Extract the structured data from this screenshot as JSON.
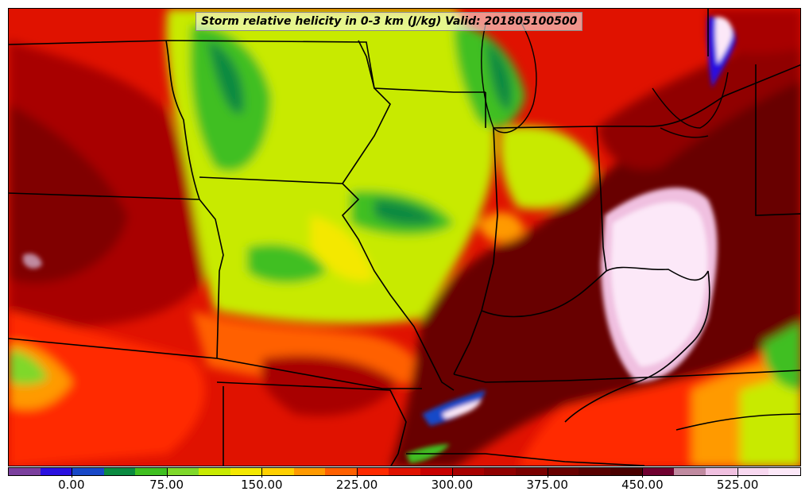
{
  "title": "Storm relative helicity in 0-3 km (J/kg) Valid: 201805100500",
  "colorbar": {
    "colors": [
      "#7b3f9e",
      "#2a10e0",
      "#1848c8",
      "#0a8a40",
      "#3fbf20",
      "#7fd82a",
      "#c8ea00",
      "#f4e800",
      "#ffd000",
      "#ff9a00",
      "#ff6000",
      "#ff2a00",
      "#e01200",
      "#c80000",
      "#a80000",
      "#900000",
      "#7a0000",
      "#680000",
      "#580000",
      "#4a0000",
      "#700030",
      "#c08aa0",
      "#f0c0e0",
      "#f8d8f0",
      "#fce8f8"
    ],
    "tick_labels": [
      "0.00",
      "75.00",
      "150.00",
      "225.00",
      "300.00",
      "375.00",
      "450.00",
      "525.00"
    ],
    "tick_values": [
      0,
      75,
      150,
      225,
      300,
      375,
      450,
      525
    ],
    "range": [
      -50,
      575
    ]
  }
}
